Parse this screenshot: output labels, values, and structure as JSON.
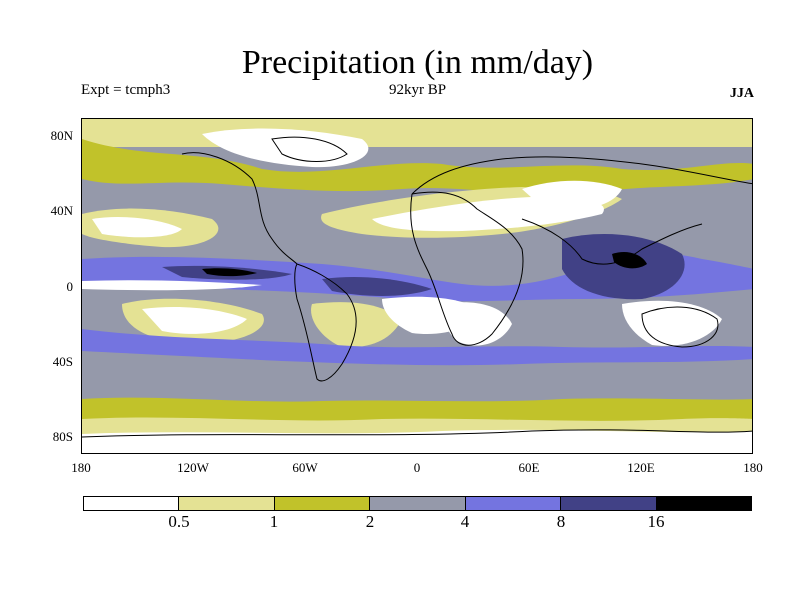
{
  "title": "Precipitation (in mm/day)",
  "subtitle_left": "Expt = tcmph3",
  "subtitle_center": "92kyr BP",
  "subtitle_right": "JJA",
  "lat_labels": [
    "80N",
    "40N",
    "0",
    "40S",
    "80S"
  ],
  "lon_labels": [
    "180",
    "120W",
    "60W",
    "0",
    "60E",
    "120E",
    "180"
  ],
  "colorbar": {
    "colors": [
      "#ffffff",
      "#e4e294",
      "#c1c22a",
      "#9599aa",
      "#7474e0",
      "#414186",
      "#000000"
    ],
    "labels": [
      "0.5",
      "1",
      "2",
      "4",
      "8",
      "16"
    ]
  }
}
